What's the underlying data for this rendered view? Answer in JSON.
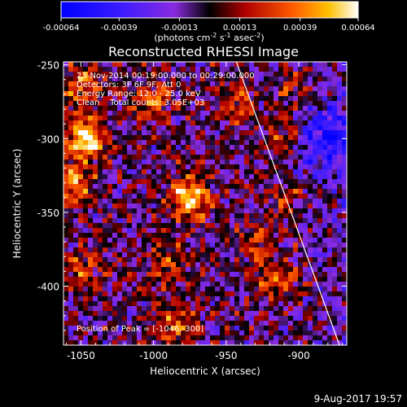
{
  "chart_data": {
    "type": "heatmap",
    "title": "Reconstructed RHESSI Image",
    "colorbar": {
      "ticks": [
        "-0.00064",
        "-0.00039",
        "-0.00013",
        "0.00013",
        "0.00039",
        "0.00064"
      ],
      "range": [
        -0.00064,
        0.00064
      ],
      "unit_parts": [
        "(photons cm",
        "-2",
        " s",
        "-1",
        " asec",
        "-2",
        ")"
      ]
    },
    "annotations": [
      "23-Nov-2014 00:19:00.000 to 00:29:00.000",
      "Detectors: 3F 6F 9F, Att 0",
      "Energy Range: 12.0 - 25.0 keV",
      "Clean    Total counts: 3.05E+03"
    ],
    "peak_label": "Position of Peak = [-1046,-300]",
    "peak_position": [
      -1046,
      -300
    ],
    "xlabel": "Heliocentric X (arcsec)",
    "ylabel": "Heliocentric Y (arcsec)",
    "x_ticks": [
      "-1050",
      "-1000",
      "-950",
      "-900"
    ],
    "y_ticks": [
      "-250",
      "-300",
      "-350",
      "-400"
    ],
    "xlim": [
      -1062,
      -867
    ],
    "ylim": [
      -440,
      -248
    ],
    "x_tick_values": [
      -1050,
      -1000,
      -950,
      -900
    ],
    "y_tick_values": [
      -250,
      -300,
      -350,
      -400
    ],
    "limb_line": [
      [
        -943,
        -248
      ],
      [
        -872,
        -440
      ]
    ],
    "sources": [
      {
        "x": -1046,
        "y": -300,
        "value": 0.00064
      },
      {
        "x": -1050,
        "y": -265,
        "value": 0.0004
      },
      {
        "x": -1055,
        "y": -330,
        "value": 0.00045
      },
      {
        "x": -1050,
        "y": -390,
        "value": 0.0003
      },
      {
        "x": -1000,
        "y": -275,
        "value": 0.00032
      },
      {
        "x": -975,
        "y": -340,
        "value": 0.00058
      },
      {
        "x": -990,
        "y": -385,
        "value": 0.00025
      },
      {
        "x": -985,
        "y": -425,
        "value": 0.00035
      },
      {
        "x": -940,
        "y": -275,
        "value": 0.00028
      },
      {
        "x": -905,
        "y": -265,
        "value": 0.0003
      },
      {
        "x": -910,
        "y": -300,
        "value": 0.00038
      },
      {
        "x": -905,
        "y": -340,
        "value": 0.00025
      },
      {
        "x": -915,
        "y": -395,
        "value": 0.00032
      },
      {
        "x": -930,
        "y": -370,
        "value": 0.00022
      }
    ],
    "cool_region": {
      "x": -880,
      "y": -300,
      "value": -0.00038
    }
  },
  "footer": {
    "date": "9-Aug-2017 19:57"
  }
}
